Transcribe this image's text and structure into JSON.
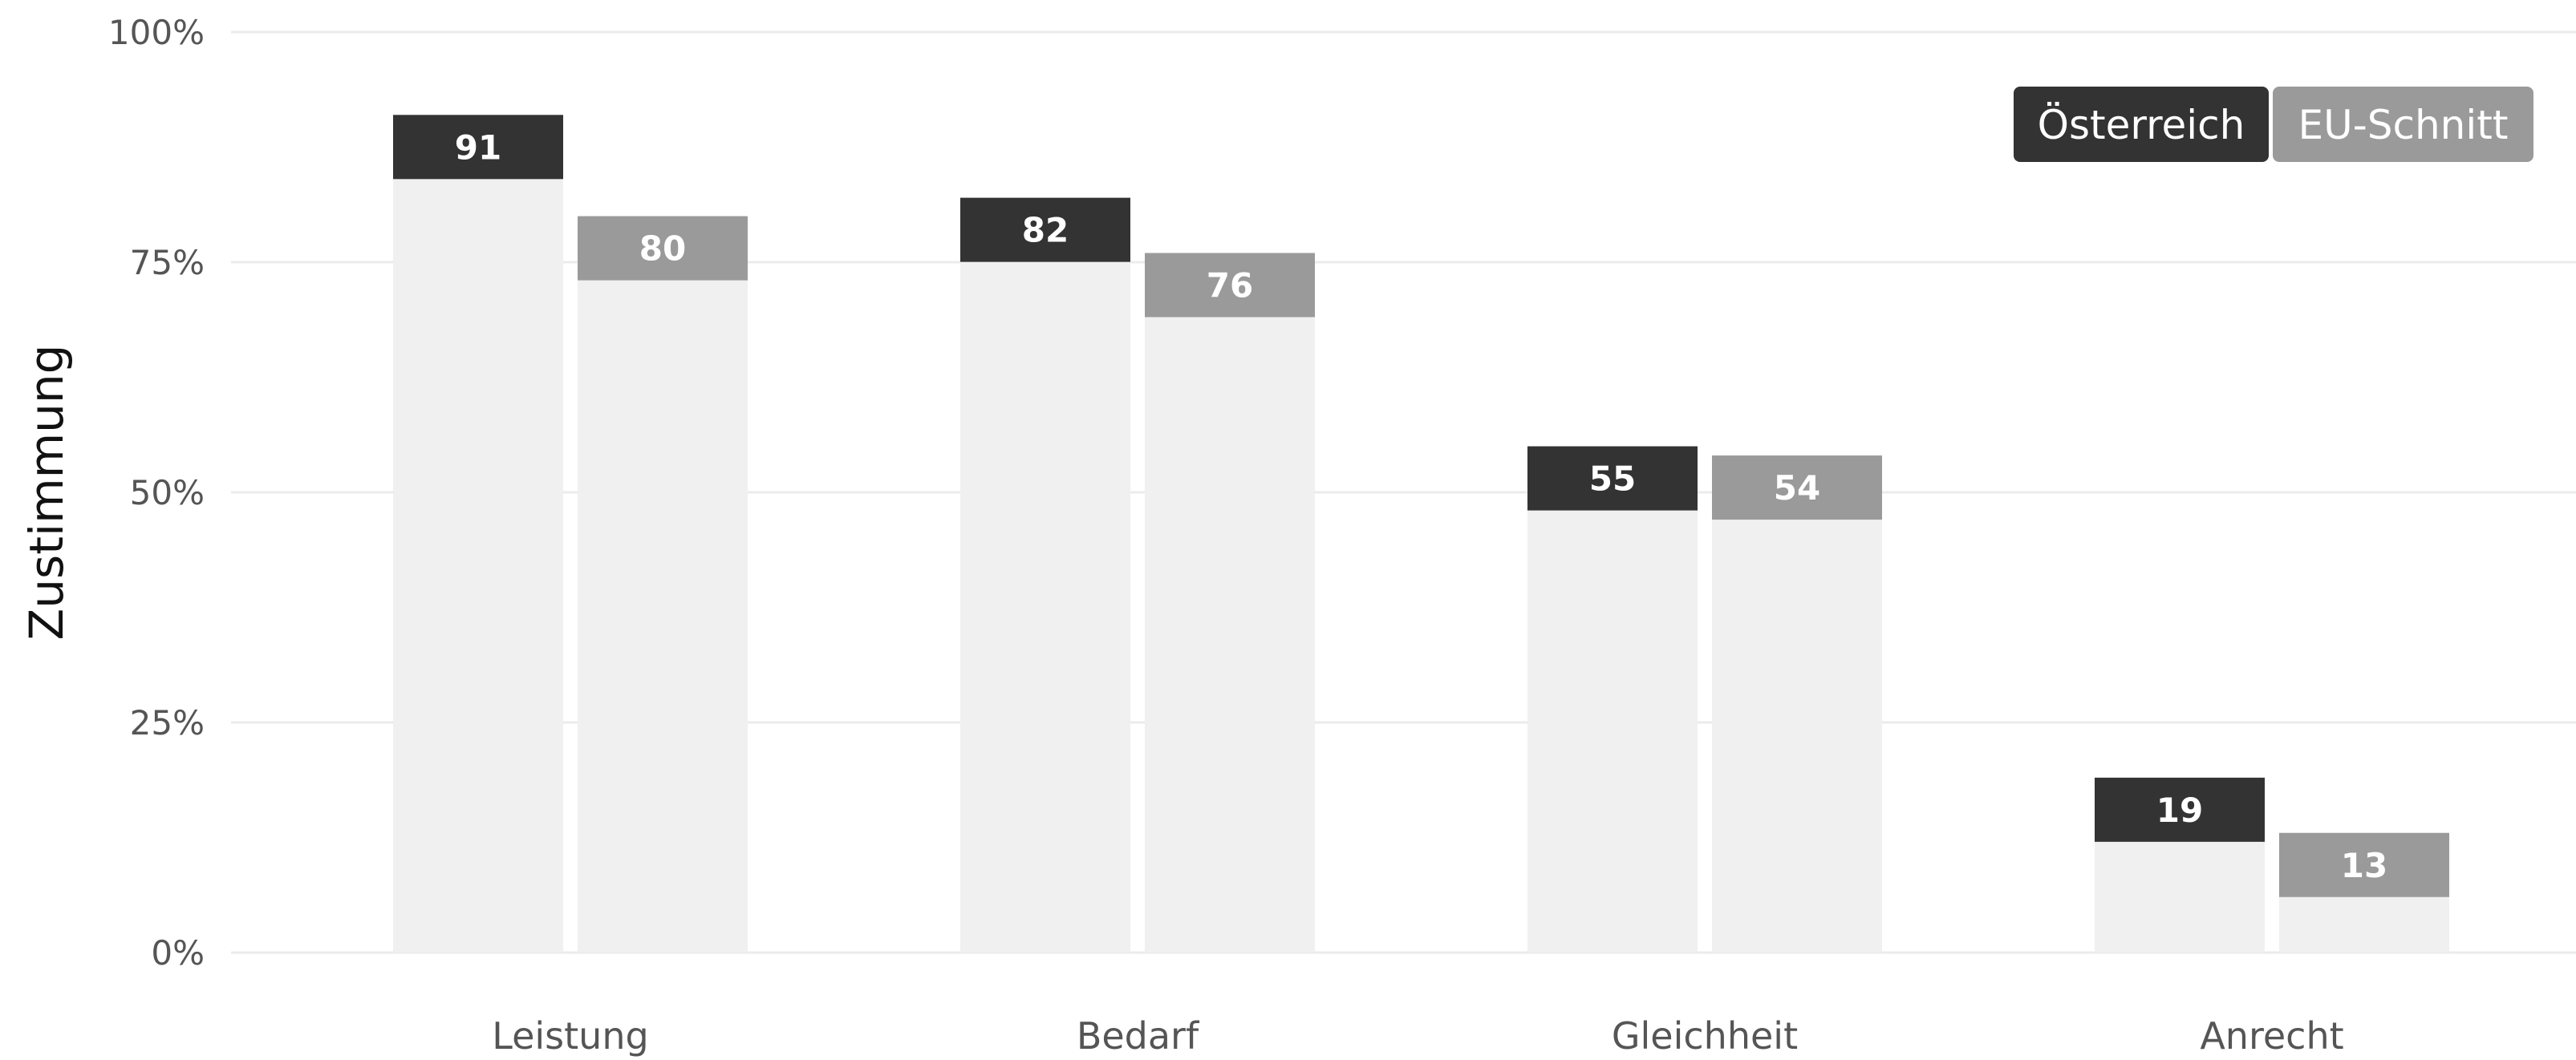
{
  "chart_data": {
    "type": "bar",
    "categories": [
      "Leistung",
      "Bedarf",
      "Gleichheit",
      "Anrecht"
    ],
    "series": [
      {
        "name": "Österreich",
        "values": [
          91,
          82,
          55,
          19
        ]
      },
      {
        "name": "EU-Schnitt",
        "values": [
          80,
          76,
          54,
          13
        ]
      }
    ],
    "ylabel": "Zustimmung",
    "ylim": [
      0,
      100
    ],
    "yticks": [
      0,
      25,
      50,
      75,
      100
    ],
    "ytick_labels": [
      "0%",
      "25%",
      "50%",
      "75%",
      "100%"
    ],
    "grid": true,
    "legend_position": "top-right",
    "colors": {
      "Österreich": "#333333",
      "EU-Schnitt": "#9a9a9a",
      "bar_body": "#f0f0f0",
      "grid": "#ebebeb"
    }
  }
}
